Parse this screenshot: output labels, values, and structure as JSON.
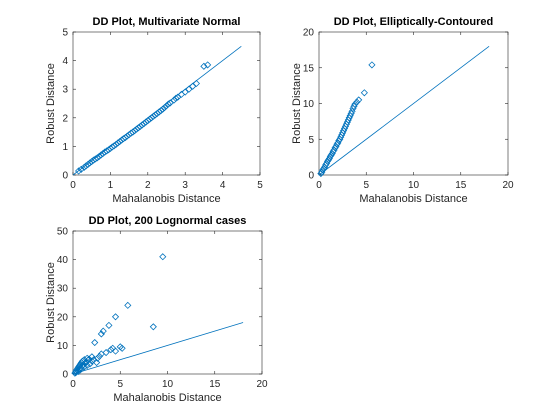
{
  "chart_data": [
    {
      "type": "scatter",
      "title": "DD Plot, Multivariate Normal",
      "xlabel": "Mahalanobis Distance",
      "ylabel": "Robust Distance",
      "xlim": [
        0,
        5
      ],
      "ylim": [
        0,
        5
      ],
      "xticks": [
        0,
        1,
        2,
        3,
        4,
        5
      ],
      "yticks": [
        0,
        1,
        2,
        3,
        4,
        5
      ],
      "reference_line": [
        [
          0,
          0
        ],
        [
          4.5,
          4.5
        ]
      ],
      "marker": "diamond",
      "color": "#0072BD",
      "points": [
        [
          0.15,
          0.14
        ],
        [
          0.22,
          0.2
        ],
        [
          0.3,
          0.27
        ],
        [
          0.35,
          0.32
        ],
        [
          0.4,
          0.37
        ],
        [
          0.45,
          0.42
        ],
        [
          0.5,
          0.47
        ],
        [
          0.55,
          0.52
        ],
        [
          0.6,
          0.56
        ],
        [
          0.65,
          0.6
        ],
        [
          0.7,
          0.65
        ],
        [
          0.75,
          0.7
        ],
        [
          0.8,
          0.75
        ],
        [
          0.85,
          0.8
        ],
        [
          0.9,
          0.84
        ],
        [
          0.95,
          0.88
        ],
        [
          1.0,
          0.93
        ],
        [
          1.05,
          0.98
        ],
        [
          1.1,
          1.02
        ],
        [
          1.15,
          1.07
        ],
        [
          1.2,
          1.12
        ],
        [
          1.25,
          1.17
        ],
        [
          1.3,
          1.22
        ],
        [
          1.35,
          1.27
        ],
        [
          1.4,
          1.31
        ],
        [
          1.45,
          1.36
        ],
        [
          1.5,
          1.41
        ],
        [
          1.55,
          1.46
        ],
        [
          1.6,
          1.5
        ],
        [
          1.65,
          1.55
        ],
        [
          1.7,
          1.6
        ],
        [
          1.75,
          1.65
        ],
        [
          1.8,
          1.7
        ],
        [
          1.85,
          1.75
        ],
        [
          1.9,
          1.8
        ],
        [
          1.95,
          1.85
        ],
        [
          2.0,
          1.9
        ],
        [
          2.05,
          1.95
        ],
        [
          2.1,
          2.0
        ],
        [
          2.15,
          2.05
        ],
        [
          2.2,
          2.1
        ],
        [
          2.25,
          2.15
        ],
        [
          2.3,
          2.2
        ],
        [
          2.35,
          2.25
        ],
        [
          2.4,
          2.3
        ],
        [
          2.45,
          2.36
        ],
        [
          2.5,
          2.42
        ],
        [
          2.55,
          2.48
        ],
        [
          2.6,
          2.52
        ],
        [
          2.7,
          2.62
        ],
        [
          2.75,
          2.68
        ],
        [
          2.8,
          2.72
        ],
        [
          2.9,
          2.82
        ],
        [
          3.0,
          2.9
        ],
        [
          3.1,
          3.0
        ],
        [
          3.2,
          3.1
        ],
        [
          3.3,
          3.2
        ],
        [
          3.5,
          3.8
        ],
        [
          3.6,
          3.85
        ]
      ]
    },
    {
      "type": "scatter",
      "title": "DD Plot, Elliptically-Contoured",
      "xlabel": "Mahalanobis Distance",
      "ylabel": "Robust Distance",
      "xlim": [
        0,
        20
      ],
      "ylim": [
        0,
        20
      ],
      "xticks": [
        0,
        5,
        10,
        15,
        20
      ],
      "yticks": [
        0,
        5,
        10,
        15,
        20
      ],
      "reference_line": [
        [
          0,
          0
        ],
        [
          18,
          18
        ]
      ],
      "marker": "diamond",
      "color": "#0072BD",
      "points": [
        [
          0.2,
          0.2
        ],
        [
          0.3,
          0.4
        ],
        [
          0.4,
          0.7
        ],
        [
          0.5,
          0.9
        ],
        [
          0.6,
          1.1
        ],
        [
          0.7,
          1.4
        ],
        [
          0.8,
          1.6
        ],
        [
          0.9,
          1.9
        ],
        [
          1.0,
          2.1
        ],
        [
          1.1,
          2.3
        ],
        [
          1.2,
          2.6
        ],
        [
          1.3,
          2.8
        ],
        [
          1.4,
          3.0
        ],
        [
          1.5,
          3.3
        ],
        [
          1.6,
          3.5
        ],
        [
          1.7,
          3.8
        ],
        [
          1.8,
          4.0
        ],
        [
          1.9,
          4.3
        ],
        [
          2.0,
          4.5
        ],
        [
          2.1,
          4.8
        ],
        [
          2.2,
          5.0
        ],
        [
          2.3,
          5.3
        ],
        [
          2.4,
          5.6
        ],
        [
          2.5,
          5.9
        ],
        [
          2.6,
          6.2
        ],
        [
          2.7,
          6.5
        ],
        [
          2.8,
          6.8
        ],
        [
          2.9,
          7.1
        ],
        [
          3.0,
          7.4
        ],
        [
          3.1,
          7.7
        ],
        [
          3.2,
          8.0
        ],
        [
          3.3,
          8.3
        ],
        [
          3.4,
          8.6
        ],
        [
          3.5,
          8.9
        ],
        [
          3.6,
          9.3
        ],
        [
          3.7,
          9.6
        ],
        [
          3.8,
          9.9
        ],
        [
          4.0,
          10.2
        ],
        [
          4.2,
          10.5
        ],
        [
          4.8,
          11.5
        ],
        [
          5.6,
          15.4
        ]
      ]
    },
    {
      "type": "scatter",
      "title": "DD Plot, 200 Lognormal cases",
      "xlabel": "Mahalanobis Distance",
      "ylabel": "Robust Distance",
      "xlim": [
        0,
        20
      ],
      "ylim": [
        0,
        50
      ],
      "xticks": [
        0,
        5,
        10,
        15,
        20
      ],
      "yticks": [
        0,
        10,
        20,
        30,
        40,
        50
      ],
      "reference_line": [
        [
          0,
          0
        ],
        [
          18,
          18
        ]
      ],
      "marker": "diamond",
      "color": "#0072BD",
      "points": [
        [
          0.2,
          0.3
        ],
        [
          0.3,
          0.5
        ],
        [
          0.3,
          1.0
        ],
        [
          0.4,
          0.8
        ],
        [
          0.4,
          1.5
        ],
        [
          0.5,
          1.2
        ],
        [
          0.5,
          2.0
        ],
        [
          0.6,
          0.9
        ],
        [
          0.6,
          2.5
        ],
        [
          0.7,
          1.6
        ],
        [
          0.7,
          3.0
        ],
        [
          0.8,
          2.2
        ],
        [
          0.8,
          3.5
        ],
        [
          0.9,
          1.8
        ],
        [
          0.9,
          4.0
        ],
        [
          1.0,
          2.8
        ],
        [
          1.0,
          4.5
        ],
        [
          1.1,
          3.3
        ],
        [
          1.2,
          2.5
        ],
        [
          1.2,
          5.0
        ],
        [
          1.3,
          3.8
        ],
        [
          1.4,
          4.2
        ],
        [
          1.5,
          3.0
        ],
        [
          1.5,
          5.5
        ],
        [
          1.6,
          4.8
        ],
        [
          1.7,
          5.2
        ],
        [
          1.8,
          3.5
        ],
        [
          2.0,
          4.5
        ],
        [
          2.0,
          6.0
        ],
        [
          2.2,
          5.0
        ],
        [
          2.3,
          11.0
        ],
        [
          2.5,
          4.0
        ],
        [
          2.6,
          5.5
        ],
        [
          2.8,
          6.2
        ],
        [
          3.0,
          7.0
        ],
        [
          3.0,
          14.0
        ],
        [
          3.2,
          15.0
        ],
        [
          3.5,
          7.5
        ],
        [
          3.8,
          17.0
        ],
        [
          4.0,
          8.5
        ],
        [
          4.2,
          9.0
        ],
        [
          4.5,
          20.0
        ],
        [
          4.5,
          8.0
        ],
        [
          5.0,
          9.5
        ],
        [
          5.2,
          9.0
        ],
        [
          5.8,
          24.0
        ],
        [
          8.5,
          16.5
        ],
        [
          9.5,
          41.0
        ]
      ]
    }
  ]
}
